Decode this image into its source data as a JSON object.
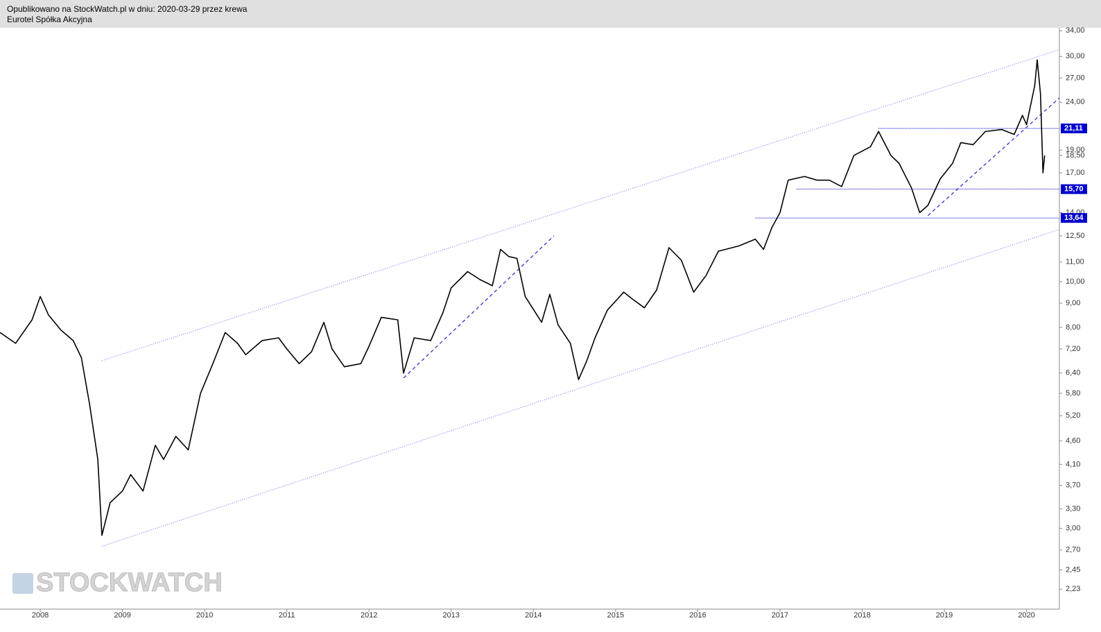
{
  "header": {
    "line1": "Opublikowano na StockWatch.pl w dniu: 2020-03-29 przez krewa",
    "line2": "Eurotel Spółka Akcyjna"
  },
  "chart_data": {
    "type": "line",
    "log_y": true,
    "color": "#000000",
    "watermark": "STOCKWATCH",
    "xlim": [
      2007.51,
      2020.4
    ],
    "xticks": [
      2008,
      2009,
      2010,
      2011,
      2012,
      2013,
      2014,
      2015,
      2016,
      2017,
      2018,
      2019,
      2020
    ],
    "ylim": [
      2.01,
      34.5
    ],
    "yticks": [
      {
        "value": 34,
        "label": "34,00"
      },
      {
        "value": 30,
        "label": "30,00"
      },
      {
        "value": 27,
        "label": "27,00"
      },
      {
        "value": 24,
        "label": "24,00"
      },
      {
        "value": 19,
        "label": "19,00"
      },
      {
        "value": 18.5,
        "label": "18,50"
      },
      {
        "value": 17,
        "label": "17,00"
      },
      {
        "value": 14,
        "label": "14,00"
      },
      {
        "value": 12.5,
        "label": "12,50"
      },
      {
        "value": 11,
        "label": "11,00"
      },
      {
        "value": 10,
        "label": "10,00"
      },
      {
        "value": 9,
        "label": "9,00"
      },
      {
        "value": 8,
        "label": "8,00"
      },
      {
        "value": 7.2,
        "label": "7,20"
      },
      {
        "value": 6.4,
        "label": "6,40"
      },
      {
        "value": 5.8,
        "label": "5,80"
      },
      {
        "value": 5.2,
        "label": "5,20"
      },
      {
        "value": 4.6,
        "label": "4,60"
      },
      {
        "value": 4.1,
        "label": "4,10"
      },
      {
        "value": 3.7,
        "label": "3,70"
      },
      {
        "value": 3.3,
        "label": "3,30"
      },
      {
        "value": 3,
        "label": "3,00"
      },
      {
        "value": 2.7,
        "label": "2,70"
      },
      {
        "value": 2.45,
        "label": "2,45"
      },
      {
        "value": 2.23,
        "label": "2,23"
      }
    ],
    "x": [
      2007.51,
      2007.7,
      2007.9,
      2008.0,
      2008.1,
      2008.25,
      2008.4,
      2008.5,
      2008.6,
      2008.7,
      2008.75,
      2008.85,
      2009.0,
      2009.1,
      2009.25,
      2009.4,
      2009.5,
      2009.65,
      2009.8,
      2009.95,
      2010.1,
      2010.25,
      2010.4,
      2010.5,
      2010.7,
      2010.9,
      2011.0,
      2011.15,
      2011.3,
      2011.45,
      2011.55,
      2011.7,
      2011.9,
      2012.0,
      2012.15,
      2012.35,
      2012.42,
      2012.55,
      2012.75,
      2012.9,
      2013.0,
      2013.2,
      2013.35,
      2013.5,
      2013.6,
      2013.7,
      2013.8,
      2013.9,
      2014.1,
      2014.2,
      2014.3,
      2014.45,
      2014.55,
      2014.65,
      2014.75,
      2014.9,
      2015.1,
      2015.2,
      2015.35,
      2015.5,
      2015.65,
      2015.8,
      2015.95,
      2016.1,
      2016.25,
      2016.5,
      2016.7,
      2016.8,
      2016.9,
      2017.0,
      2017.1,
      2017.3,
      2017.45,
      2017.6,
      2017.75,
      2017.9,
      2018.1,
      2018.2,
      2018.35,
      2018.45,
      2018.6,
      2018.7,
      2018.8,
      2018.95,
      2019.1,
      2019.2,
      2019.35,
      2019.5,
      2019.7,
      2019.85,
      2019.95,
      2020.0,
      2020.1,
      2020.13,
      2020.17,
      2020.2,
      2020.22
    ],
    "values": [
      7.8,
      7.4,
      8.3,
      9.3,
      8.5,
      7.9,
      7.5,
      6.9,
      5.5,
      4.2,
      2.9,
      3.4,
      3.6,
      3.9,
      3.6,
      4.5,
      4.2,
      4.7,
      4.4,
      5.8,
      6.7,
      7.8,
      7.4,
      7.0,
      7.5,
      7.6,
      7.2,
      6.7,
      7.1,
      8.2,
      7.2,
      6.6,
      6.7,
      7.3,
      8.4,
      8.3,
      6.4,
      7.6,
      7.5,
      8.6,
      9.7,
      10.5,
      10.1,
      9.8,
      11.7,
      11.3,
      11.2,
      9.3,
      8.2,
      9.4,
      8.1,
      7.4,
      6.2,
      6.8,
      7.6,
      8.7,
      9.5,
      9.2,
      8.8,
      9.6,
      11.8,
      11.1,
      9.5,
      10.3,
      11.6,
      11.9,
      12.3,
      11.7,
      13.0,
      14.0,
      16.4,
      16.7,
      16.4,
      16.4,
      15.9,
      18.5,
      19.3,
      20.8,
      18.5,
      17.8,
      15.8,
      14.0,
      14.5,
      16.5,
      17.8,
      19.7,
      19.5,
      20.8,
      21.0,
      20.5,
      22.5,
      21.5,
      26.0,
      29.5,
      25.0,
      17.0,
      18.5
    ],
    "levels": {
      "values": [
        21.11,
        15.7,
        13.64
      ],
      "value_labels": [
        "21,11",
        "15,70",
        "13,64"
      ],
      "x_start": [
        2018.2,
        2017.2,
        2016.7
      ],
      "color": "#0000cc"
    },
    "trendlines": [
      {
        "x": [
          2008.75,
          2020.4
        ],
        "y": [
          6.8,
          31
        ],
        "style": "dotted",
        "color": "#6666ee"
      },
      {
        "x": [
          2008.75,
          2020.4
        ],
        "y": [
          2.75,
          12.9
        ],
        "style": "dotted",
        "color": "#6666ee"
      },
      {
        "x": [
          2012.42,
          2014.25
        ],
        "y": [
          6.25,
          12.5
        ],
        "style": "dashed",
        "color": "#3333cc"
      },
      {
        "x": [
          2018.8,
          2020.4
        ],
        "y": [
          13.8,
          24.5
        ],
        "style": "dashed",
        "color": "#3333cc"
      }
    ]
  }
}
